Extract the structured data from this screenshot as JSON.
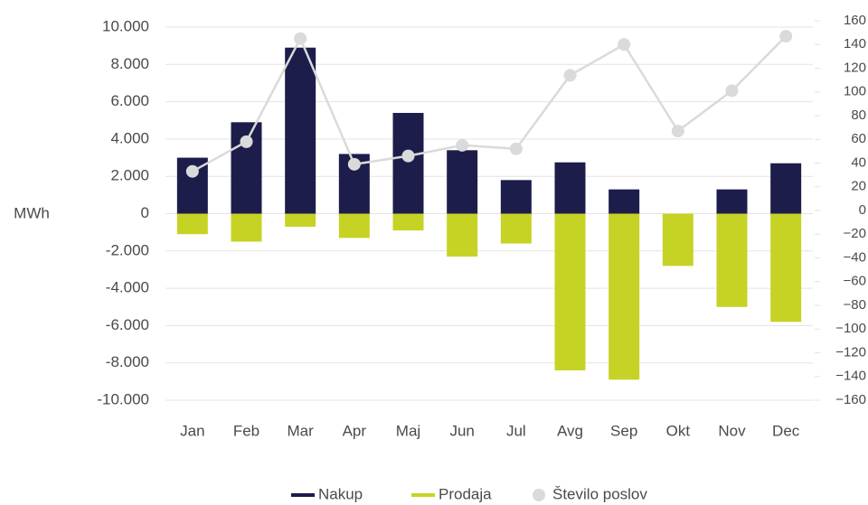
{
  "chart_data": {
    "type": "bar",
    "y_label": "MWh",
    "categories": [
      "Jan",
      "Feb",
      "Mar",
      "Apr",
      "Maj",
      "Jun",
      "Jul",
      "Avg",
      "Sep",
      "Okt",
      "Nov",
      "Dec"
    ],
    "series": [
      {
        "name": "Nakup",
        "color": "#1d1d4b",
        "type": "bar",
        "values": [
          3000,
          4900,
          8900,
          3200,
          5400,
          3400,
          1800,
          2750,
          1300,
          0,
          1300,
          2700
        ]
      },
      {
        "name": "Prodaja",
        "color": "#c6d325",
        "type": "bar",
        "values": [
          -1100,
          -1500,
          -700,
          -1300,
          -900,
          -2300,
          -1600,
          -8400,
          -8900,
          -2800,
          -5000,
          -5800
        ]
      },
      {
        "name": "Število poslov",
        "color": "#dadada",
        "type": "line",
        "axis": "y2",
        "values": [
          33,
          58,
          145,
          39,
          46,
          55,
          52,
          114,
          140,
          67,
          101,
          147
        ]
      }
    ],
    "ylim": [
      -10000,
      10000
    ],
    "yticks": [
      {
        "value": -10000,
        "label": "-10.000"
      },
      {
        "value": -8000,
        "label": "-8.000"
      },
      {
        "value": -6000,
        "label": "-6.000"
      },
      {
        "value": -4000,
        "label": "-4.000"
      },
      {
        "value": -2000,
        "label": "-2.000"
      },
      0,
      {
        "value": 2000,
        "label": "2.000"
      },
      {
        "value": 4000,
        "label": "4.000"
      },
      {
        "value": 6000,
        "label": "6.000"
      },
      {
        "value": 8000,
        "label": "8.000"
      },
      {
        "value": 10000,
        "label": "10.000"
      }
    ],
    "y2lim": [
      -160,
      160
    ],
    "y2ticks": [
      {
        "value": -160,
        "label": "−160"
      },
      {
        "value": -140,
        "label": "−140"
      },
      {
        "value": -120,
        "label": "−120"
      },
      {
        "value": -100,
        "label": "−100"
      },
      {
        "value": -80,
        "label": "−80"
      },
      {
        "value": -60,
        "label": "−60"
      },
      {
        "value": -40,
        "label": "−40"
      },
      {
        "value": -20,
        "label": "−20"
      },
      0,
      20,
      40,
      60,
      80,
      100,
      120,
      140,
      160
    ],
    "grid": true,
    "legend": "bottom"
  }
}
